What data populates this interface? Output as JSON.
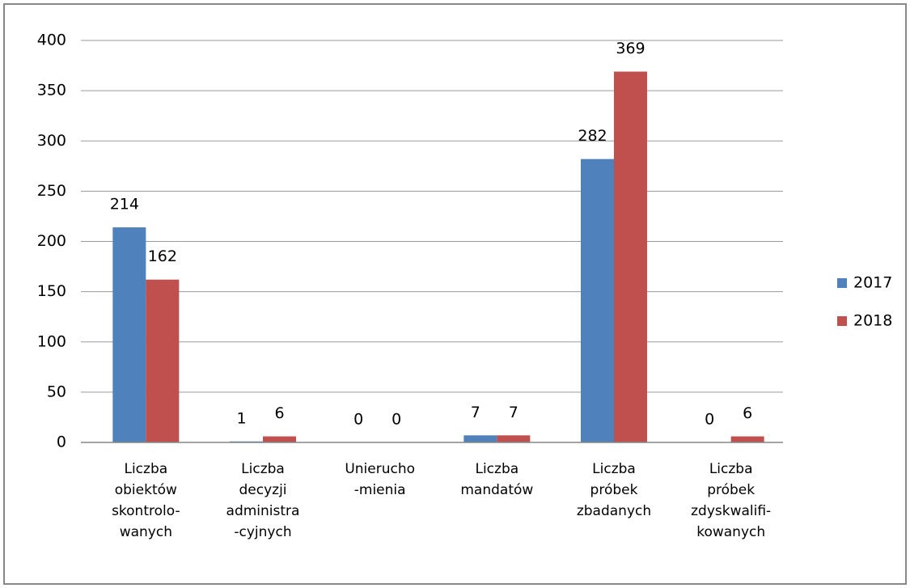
{
  "chart_data": {
    "type": "bar",
    "categories": [
      "Liczba\nobiektów\nskontrolo-\nwanych",
      "Liczba\ndecyzji\nadministra\n-cyjnych",
      "Unierucho\n-mienia",
      "Liczba\nmandatów",
      "Liczba\npróbek\nzbadanych",
      "Liczba\npróbek\nzdyskwalifi-\nkowanych"
    ],
    "series": [
      {
        "name": "2017",
        "color": "#4f81bd",
        "values": [
          214,
          1,
          0,
          7,
          282,
          0
        ]
      },
      {
        "name": "2018",
        "color": "#c0504d",
        "values": [
          162,
          6,
          0,
          7,
          369,
          6
        ]
      }
    ],
    "ylim": [
      0,
      400
    ],
    "yticks": [
      0,
      50,
      100,
      150,
      200,
      250,
      300,
      350,
      400
    ],
    "grid": true,
    "legend": "right"
  }
}
